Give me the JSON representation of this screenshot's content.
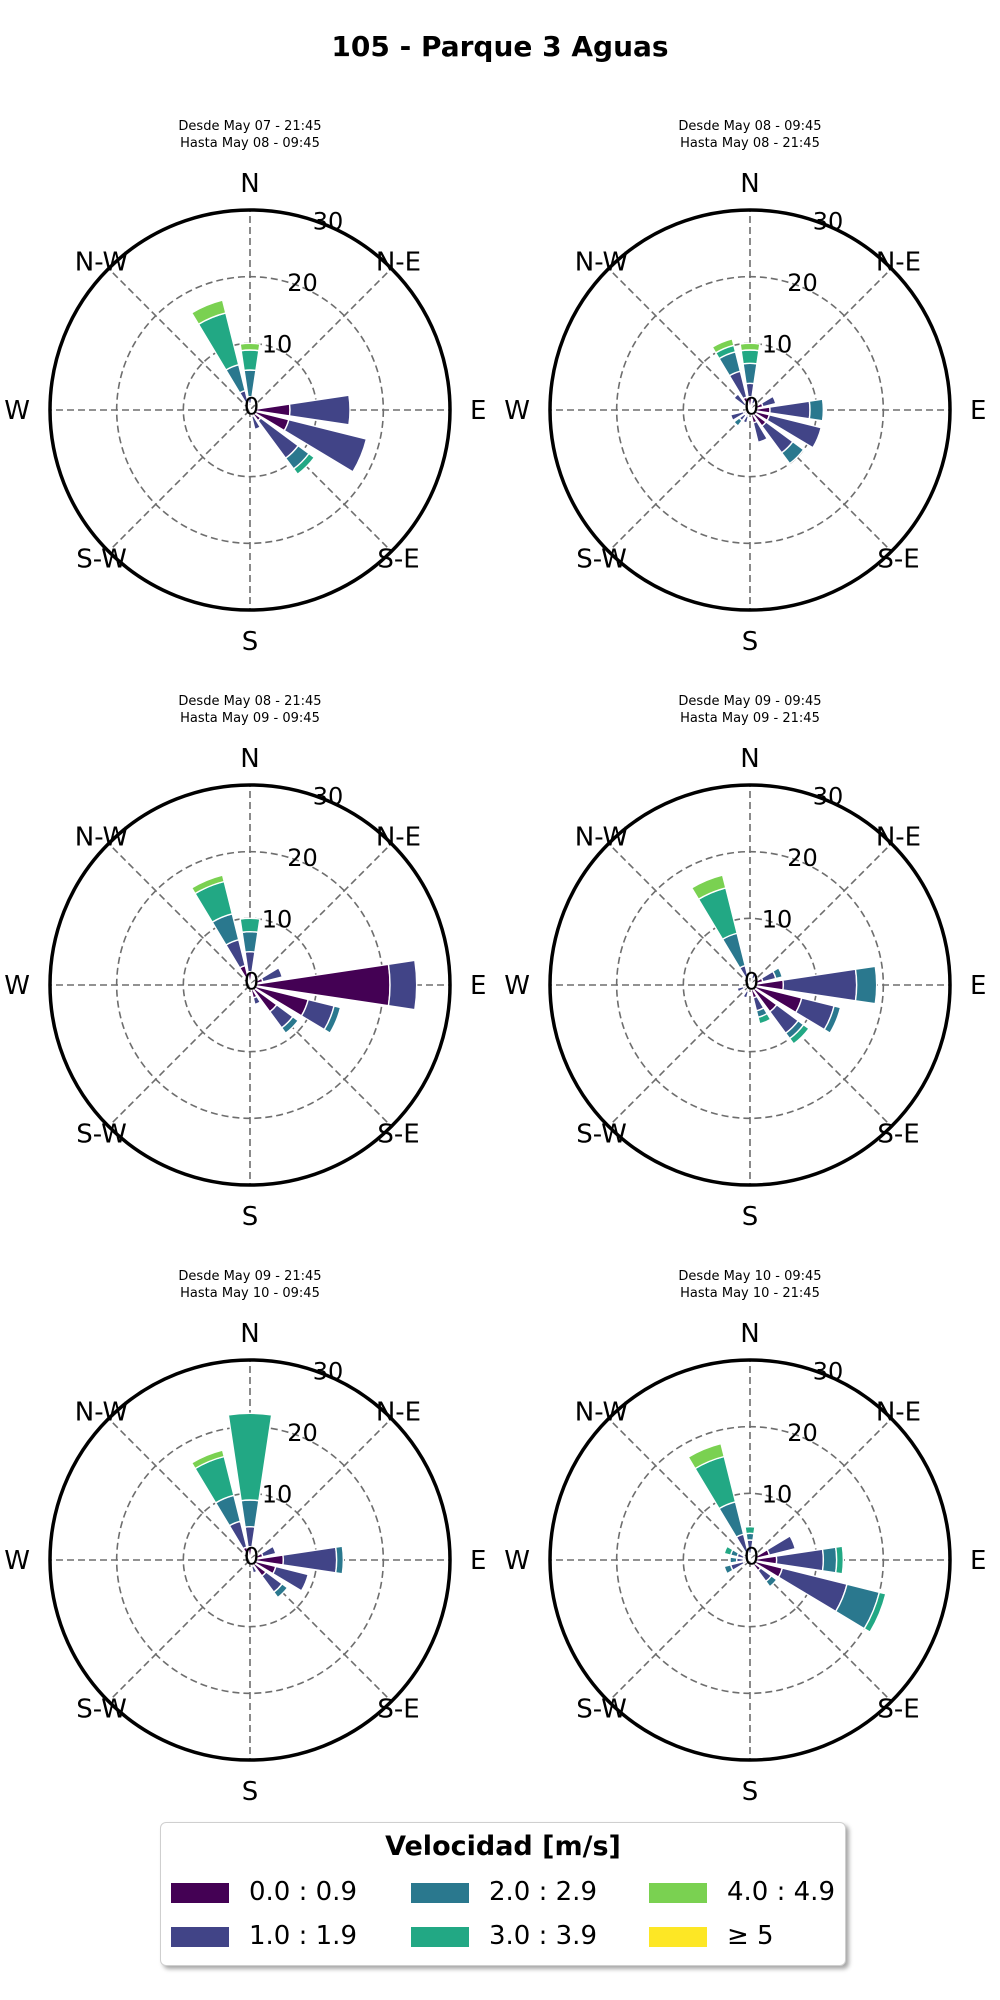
{
  "title": "105 - Parque 3 Aguas",
  "directions": [
    "N",
    "N-E",
    "E",
    "S-E",
    "S",
    "S-W",
    "W",
    "N-W"
  ],
  "radial_ticks": [
    "0",
    "10",
    "20",
    "30"
  ],
  "legend": {
    "title": "Velocidad [m/s]",
    "items": [
      {
        "label": "0.0 : 0.9",
        "color": "#440154"
      },
      {
        "label": "1.0 : 1.9",
        "color": "#414487"
      },
      {
        "label": "2.0 : 2.9",
        "color": "#2a788e"
      },
      {
        "label": "3.0 : 3.9",
        "color": "#22a884"
      },
      {
        "label": "4.0 : 4.9",
        "color": "#7ad151"
      },
      {
        "label": "≥  5",
        "color": "#fde725"
      }
    ]
  },
  "chart_data": {
    "type": "windrose",
    "speed_bins": [
      "0.0 : 0.9",
      "1.0 : 1.9",
      "2.0 : 2.9",
      "3.0 : 3.9",
      "4.0 : 4.9",
      "≥  5"
    ],
    "colors": [
      "#440154",
      "#414487",
      "#2a788e",
      "#22a884",
      "#7ad151",
      "#fde725"
    ],
    "rmax": 30,
    "grid": true,
    "panels": [
      {
        "subtitle1": "Desde May 07 - 21:45",
        "subtitle2": "Hasta May 08 - 09:45",
        "sectors": [
          {
            "dir": 0,
            "v": [
              1,
              1,
              4,
              3,
              1,
              0
            ]
          },
          {
            "dir": 337.5,
            "v": [
              1,
              2,
              4,
              8,
              2,
              0
            ]
          },
          {
            "dir": 90,
            "v": [
              6,
              9,
              0,
              0,
              0,
              0
            ]
          },
          {
            "dir": 112.5,
            "v": [
              6,
              12,
              0,
              0,
              0,
              0
            ]
          },
          {
            "dir": 135,
            "v": [
              2,
              7,
              2,
              1,
              0,
              0
            ]
          },
          {
            "dir": 157.5,
            "v": [
              1,
              2,
              0,
              0,
              0,
              0
            ]
          }
        ]
      },
      {
        "subtitle1": "Desde May 08 - 09:45",
        "subtitle2": "Hasta May 08 - 21:45",
        "sectors": [
          {
            "dir": 0,
            "v": [
              2,
              2,
              3,
              2,
              1,
              0
            ]
          },
          {
            "dir": 22.5,
            "v": [
              1,
              1,
              0,
              0,
              0,
              0
            ]
          },
          {
            "dir": 337.5,
            "v": [
              2,
              4,
              3,
              1,
              1,
              0
            ]
          },
          {
            "dir": 315,
            "v": [
              1,
              2,
              0,
              0,
              0,
              0
            ]
          },
          {
            "dir": 67.5,
            "v": [
              2,
              2,
              0,
              0,
              0,
              0
            ]
          },
          {
            "dir": 90,
            "v": [
              3,
              6,
              2,
              0,
              0,
              0
            ]
          },
          {
            "dir": 112.5,
            "v": [
              3,
              8,
              0,
              0,
              0,
              0
            ]
          },
          {
            "dir": 135,
            "v": [
              3,
              5,
              2,
              0,
              0,
              0
            ]
          },
          {
            "dir": 157.5,
            "v": [
              2,
              3,
              0,
              0,
              0,
              0
            ]
          },
          {
            "dir": 202.5,
            "v": [
              1,
              1,
              0,
              0,
              0,
              0
            ]
          },
          {
            "dir": 225,
            "v": [
              1,
              1,
              1,
              0,
              0,
              0
            ]
          },
          {
            "dir": 247.5,
            "v": [
              1,
              2,
              0,
              0,
              0,
              0
            ]
          }
        ]
      },
      {
        "subtitle1": "Desde May 08 - 21:45",
        "subtitle2": "Hasta May 09 - 09:45",
        "sectors": [
          {
            "dir": 0,
            "v": [
              2,
              3,
              3,
              2,
              0,
              0
            ]
          },
          {
            "dir": 337.5,
            "v": [
              3,
              4,
              4,
              5,
              1,
              0
            ]
          },
          {
            "dir": 67.5,
            "v": [
              2,
              3,
              0,
              0,
              0,
              0
            ]
          },
          {
            "dir": 90,
            "v": [
              21,
              4,
              0,
              0,
              0,
              0
            ]
          },
          {
            "dir": 112.5,
            "v": [
              9,
              4,
              1,
              0,
              0,
              0
            ]
          },
          {
            "dir": 135,
            "v": [
              5,
              3,
              1,
              0,
              0,
              0
            ]
          },
          {
            "dir": 157.5,
            "v": [
              2,
              1,
              0,
              0,
              0,
              0
            ]
          }
        ]
      },
      {
        "subtitle1": "Desde May 09 - 09:45",
        "subtitle2": "Hasta May 09 - 21:45",
        "sectors": [
          {
            "dir": 337.5,
            "v": [
              1,
              2,
              5,
              7,
              2,
              0
            ]
          },
          {
            "dir": 22.5,
            "v": [
              1,
              1,
              0,
              0,
              0,
              0
            ]
          },
          {
            "dir": 67.5,
            "v": [
              2,
              2,
              1,
              0,
              0,
              0
            ]
          },
          {
            "dir": 90,
            "v": [
              5,
              11,
              3,
              0,
              0,
              0
            ]
          },
          {
            "dir": 112.5,
            "v": [
              8,
              5,
              1,
              0,
              0,
              0
            ]
          },
          {
            "dir": 135,
            "v": [
              5,
              4,
              1,
              1,
              0,
              0
            ]
          },
          {
            "dir": 157.5,
            "v": [
              2,
              2,
              1,
              1,
              0,
              0
            ]
          },
          {
            "dir": 202.5,
            "v": [
              1,
              1,
              0,
              0,
              0,
              0
            ]
          },
          {
            "dir": 247.5,
            "v": [
              1,
              1,
              0,
              0,
              0,
              0
            ]
          }
        ]
      },
      {
        "subtitle1": "Desde May 09 - 21:45",
        "subtitle2": "Hasta May 10 - 09:45",
        "sectors": [
          {
            "dir": 0,
            "v": [
              2,
              3,
              4,
              13,
              0,
              0
            ]
          },
          {
            "dir": 337.5,
            "v": [
              2,
              4,
              4,
              6,
              1,
              0
            ]
          },
          {
            "dir": 67.5,
            "v": [
              2,
              2,
              0,
              0,
              0,
              0
            ]
          },
          {
            "dir": 90,
            "v": [
              5,
              8,
              1,
              0,
              0,
              0
            ]
          },
          {
            "dir": 112.5,
            "v": [
              4,
              5,
              0,
              0,
              0,
              0
            ]
          },
          {
            "dir": 135,
            "v": [
              3,
              3,
              1,
              0,
              0,
              0
            ]
          },
          {
            "dir": 157.5,
            "v": [
              1,
              1,
              0,
              0,
              0,
              0
            ]
          }
        ]
      },
      {
        "subtitle1": "Desde May 10 - 09:45",
        "subtitle2": "Hasta May 10 - 21:45",
        "sectors": [
          {
            "dir": 0,
            "v": [
              1,
              2,
              1,
              1,
              0,
              0
            ]
          },
          {
            "dir": 337.5,
            "v": [
              1,
              3,
              5,
              7,
              2,
              0
            ]
          },
          {
            "dir": 67.5,
            "v": [
              3,
              4,
              0,
              0,
              0,
              0
            ]
          },
          {
            "dir": 90,
            "v": [
              4,
              7,
              2,
              1,
              0,
              0
            ]
          },
          {
            "dir": 112.5,
            "v": [
              5,
              10,
              5,
              1,
              0,
              0
            ]
          },
          {
            "dir": 135,
            "v": [
              2,
              2,
              1,
              0,
              0,
              0
            ]
          },
          {
            "dir": 247.5,
            "v": [
              1,
              2,
              1,
              0,
              0,
              0
            ]
          },
          {
            "dir": 270,
            "v": [
              1,
              1,
              1,
              0,
              0,
              0
            ]
          },
          {
            "dir": 292.5,
            "v": [
              1,
              1,
              1,
              1,
              0,
              0
            ]
          }
        ]
      }
    ]
  }
}
